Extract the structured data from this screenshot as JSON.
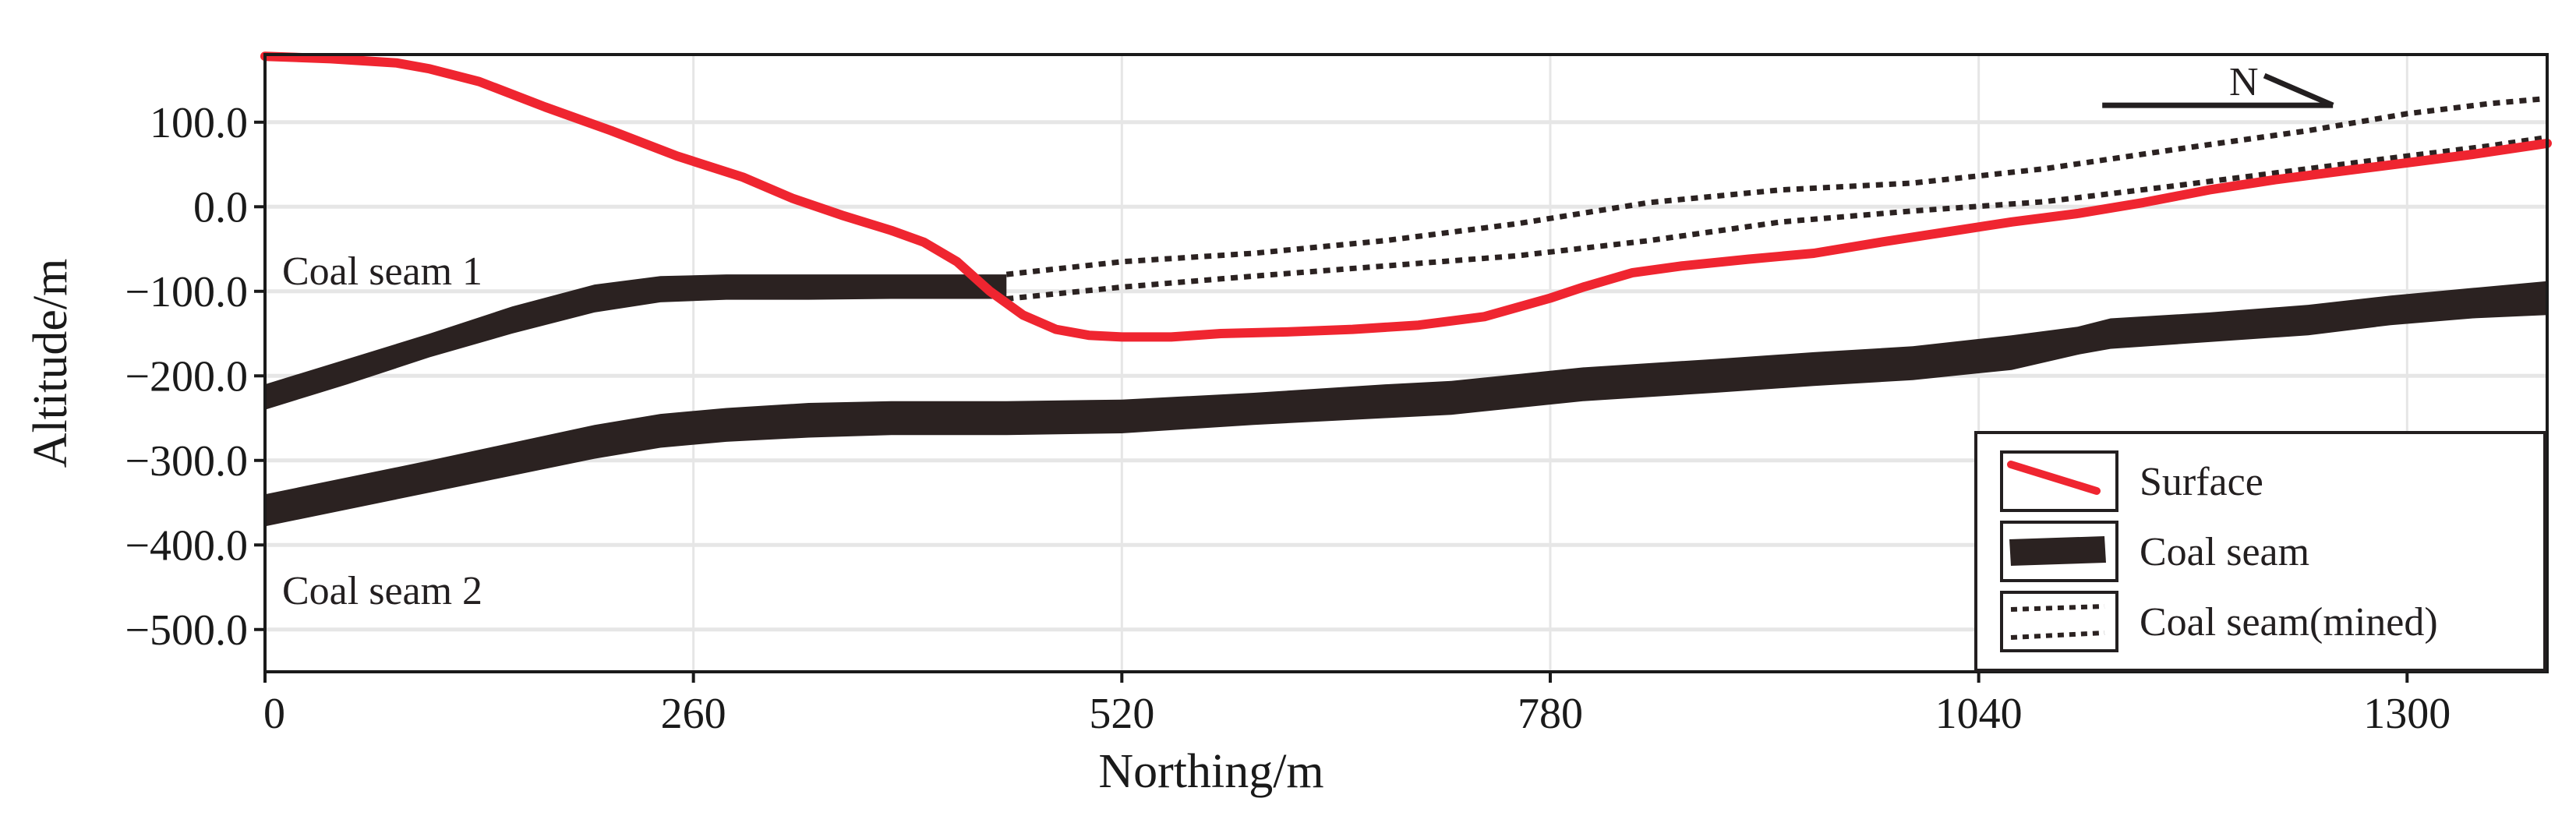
{
  "chart_data": {
    "type": "line",
    "xlabel": "Northing/m",
    "ylabel": "Altitude/m",
    "xlim": [
      0,
      1385
    ],
    "ylim": [
      -550,
      180
    ],
    "x_ticks": [
      0,
      260,
      520,
      780,
      1040,
      1300
    ],
    "x_tick_labels": [
      "0",
      "260",
      "520",
      "780",
      "1040",
      "1300"
    ],
    "y_ticks": [
      100,
      0,
      -100,
      -200,
      -300,
      -400,
      -500
    ],
    "y_tick_labels": [
      "100.0",
      "0.0",
      "−100.0",
      "−200.0",
      "−300.0",
      "−400.0",
      "−500.0"
    ],
    "grid": true,
    "legend_position": "bottom-right",
    "colors": {
      "surface": "#ef2530",
      "seam": "#2b2221",
      "mined": "#2b2221",
      "grid": "#e6e6e6",
      "axis": "#1a1a1a"
    },
    "annotations": {
      "seam1_label": "Coal  seam 1",
      "seam2_label": "Coal  seam 2",
      "north": "N"
    },
    "legend": [
      {
        "label": "Surface",
        "style": "surface"
      },
      {
        "label": "Coal seam",
        "style": "seam"
      },
      {
        "label": "Coal seam(mined)",
        "style": "mined"
      }
    ],
    "series": [
      {
        "name": "Surface",
        "style": "surface",
        "x": [
          0,
          40,
          80,
          100,
          130,
          170,
          210,
          250,
          290,
          320,
          350,
          380,
          400,
          420,
          440,
          460,
          480,
          500,
          520,
          550,
          580,
          620,
          660,
          700,
          740,
          780,
          800,
          830,
          860,
          900,
          940,
          980,
          1020,
          1060,
          1100,
          1140,
          1180,
          1220,
          1260,
          1300,
          1340,
          1385
        ],
        "y": [
          178,
          175,
          170,
          163,
          148,
          118,
          90,
          60,
          35,
          10,
          -10,
          -28,
          -42,
          -65,
          -100,
          -128,
          -145,
          -152,
          -154,
          -154,
          -150,
          -148,
          -145,
          -140,
          -130,
          -108,
          -95,
          -78,
          -70,
          -62,
          -55,
          -42,
          -30,
          -18,
          -8,
          5,
          20,
          32,
          42,
          52,
          62,
          75
        ]
      },
      {
        "name": "Coal seam 1 (top)",
        "style": "seam_edge",
        "x": [
          0,
          50,
          100,
          150,
          200,
          240,
          280,
          330,
          380,
          430,
          450
        ],
        "y": [
          -210,
          -180,
          -150,
          -118,
          -92,
          -82,
          -80,
          -80,
          -80,
          -80,
          -80
        ]
      },
      {
        "name": "Coal seam 1 (bottom)",
        "style": "seam_edge",
        "x": [
          0,
          50,
          100,
          150,
          200,
          240,
          280,
          330,
          380,
          430,
          450
        ],
        "y": [
          -240,
          -210,
          -178,
          -150,
          -125,
          -113,
          -110,
          -110,
          -109,
          -109,
          -109
        ]
      },
      {
        "name": "Coal seam 2 (top)",
        "style": "seam_edge",
        "x": [
          0,
          100,
          200,
          240,
          280,
          330,
          380,
          450,
          520,
          600,
          680,
          720,
          800,
          880,
          940,
          1000,
          1060,
          1100,
          1120,
          1180,
          1240,
          1290,
          1340,
          1385
        ],
        "y": [
          -340,
          -300,
          -258,
          -245,
          -238,
          -232,
          -230,
          -230,
          -228,
          -220,
          -210,
          -206,
          -190,
          -180,
          -172,
          -165,
          -152,
          -142,
          -132,
          -125,
          -116,
          -105,
          -96,
          -88
        ]
      },
      {
        "name": "Coal seam 2 (bottom)",
        "style": "seam_edge",
        "x": [
          0,
          100,
          200,
          240,
          280,
          330,
          380,
          450,
          520,
          600,
          680,
          720,
          800,
          880,
          940,
          1000,
          1060,
          1100,
          1120,
          1180,
          1240,
          1290,
          1340,
          1385
        ],
        "y": [
          -378,
          -338,
          -298,
          -285,
          -278,
          -273,
          -270,
          -270,
          -268,
          -258,
          -250,
          -246,
          -230,
          -220,
          -212,
          -205,
          -193,
          -175,
          -168,
          -160,
          -152,
          -140,
          -132,
          -128
        ]
      },
      {
        "name": "Coal seam 1 mined (top)",
        "style": "mined",
        "x": [
          450,
          520,
          600,
          680,
          760,
          840,
          920,
          1000,
          1080,
          1160,
          1240,
          1300,
          1350,
          1385
        ],
        "y": [
          -80,
          -65,
          -55,
          -40,
          -20,
          5,
          20,
          28,
          45,
          68,
          90,
          110,
          122,
          128
        ]
      },
      {
        "name": "Coal seam 1 mined (bottom)",
        "style": "mined",
        "x": [
          450,
          520,
          600,
          680,
          760,
          840,
          920,
          1000,
          1080,
          1160,
          1240,
          1300,
          1350,
          1385
        ],
        "y": [
          -109,
          -95,
          -82,
          -70,
          -58,
          -40,
          -18,
          -5,
          6,
          25,
          45,
          60,
          72,
          82
        ]
      }
    ],
    "north_arrow": {
      "x_start": 1115,
      "x_end": 1255,
      "y": 120
    }
  }
}
